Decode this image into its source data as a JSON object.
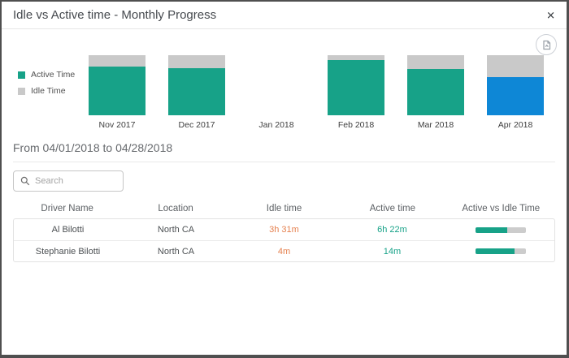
{
  "dialog": {
    "title": "Idle vs Active time - Monthly Progress",
    "close_glyph": "✕"
  },
  "chart_data": {
    "type": "bar",
    "stacked": true,
    "categories": [
      "Nov 2017",
      "Dec 2017",
      "Jan 2018",
      "Feb 2018",
      "Mar 2018",
      "Apr 2018"
    ],
    "series": [
      {
        "name": "Active Time",
        "values": [
          81,
          79,
          0,
          92,
          77,
          63
        ]
      },
      {
        "name": "Idle Time",
        "values": [
          19,
          21,
          0,
          8,
          23,
          37
        ]
      }
    ],
    "unit": "percent of month bar height",
    "ylim": [
      0,
      100
    ],
    "legend_position": "left",
    "highlighted_category": "Apr 2018",
    "colors": {
      "active": "#17a288",
      "idle": "#c9c9c9",
      "active_highlighted": "#0e87d6"
    }
  },
  "period": {
    "label": "From 04/01/2018 to 04/28/2018"
  },
  "search": {
    "placeholder": "Search"
  },
  "table": {
    "columns": [
      "Driver Name",
      "Location",
      "Idle time",
      "Active time",
      "Active vs Idle Time"
    ],
    "rows": [
      {
        "driver": "Al Bilotti",
        "location": "North CA",
        "idle": "3h 31m",
        "active": "6h 22m",
        "active_pct": 64
      },
      {
        "driver": "Stephanie Bilotti",
        "location": "North CA",
        "idle": "4m",
        "active": "14m",
        "active_pct": 78
      }
    ],
    "value_colors": {
      "idle_text": "#e5814f",
      "active_text": "#17a288",
      "bar_fill": "#17a288",
      "bar_track": "#cccccc"
    }
  }
}
